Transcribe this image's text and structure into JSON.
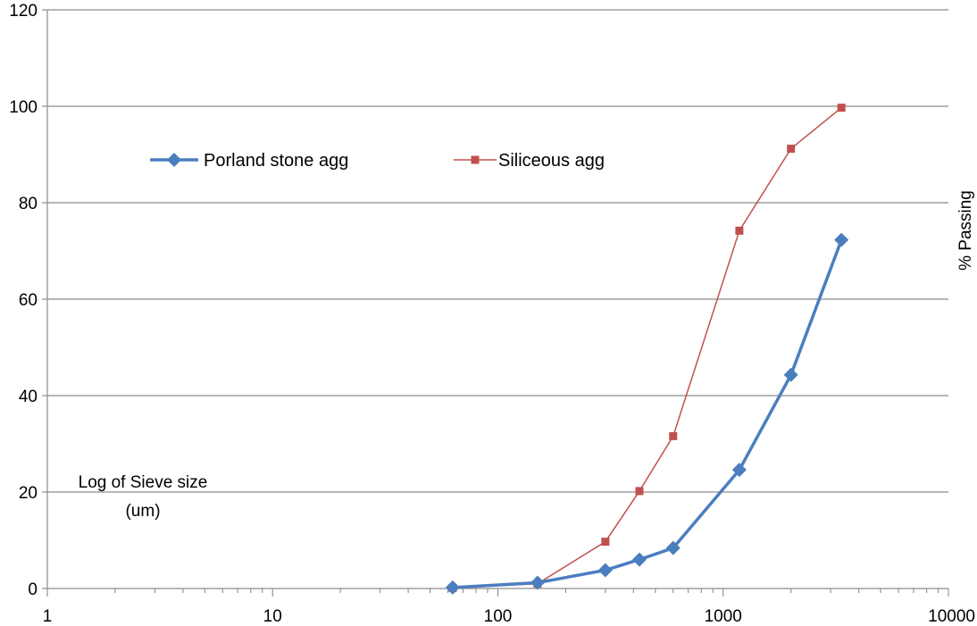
{
  "chart_data": {
    "type": "line",
    "x_scale": "log",
    "xlim": [
      1,
      10000
    ],
    "ylim": [
      0,
      120
    ],
    "x_ticks": [
      "1",
      "10",
      "100",
      "1000",
      "10000"
    ],
    "y_ticks": [
      "0",
      "20",
      "40",
      "60",
      "80",
      "100",
      "120"
    ],
    "x_tick_values": [
      1,
      10,
      100,
      1000,
      10000
    ],
    "y_tick_values": [
      0,
      20,
      40,
      60,
      80,
      100,
      120
    ],
    "xlabel_line1": "Log of Sieve size",
    "xlabel_line2": "(um)",
    "ylabel": "% Passing",
    "grid": "horizontal",
    "legend_position": "upper-left",
    "series": [
      {
        "name": "Porland stone agg",
        "color": "#4a7ebf",
        "marker": "diamond",
        "x": [
          63,
          150,
          300,
          425,
          600,
          1180,
          2000,
          3350
        ],
        "y": [
          0.2,
          1.2,
          3.8,
          6.0,
          8.4,
          24.6,
          44.3,
          72.3
        ]
      },
      {
        "name": "Siliceous agg",
        "color": "#c0504d",
        "marker": "square",
        "x": [
          63,
          150,
          300,
          425,
          600,
          1180,
          2000,
          3350
        ],
        "y": [
          0.1,
          1.0,
          9.7,
          20.2,
          31.6,
          74.2,
          91.2,
          99.7
        ]
      }
    ]
  }
}
